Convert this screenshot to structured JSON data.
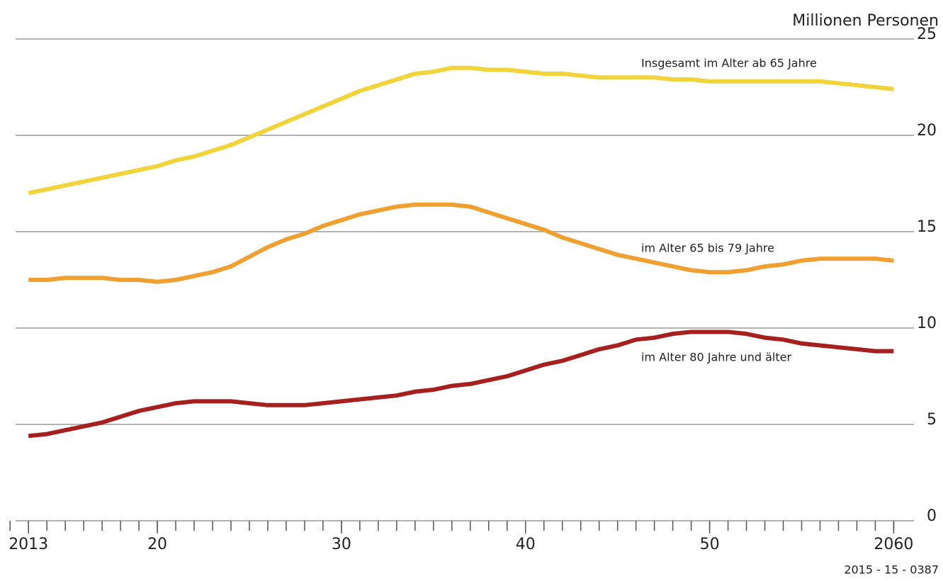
{
  "chart_data": {
    "type": "line",
    "y_axis_label": "Millionen Personen",
    "source": "2015 - 15 - 0387",
    "x": [
      2013,
      2014,
      2015,
      2016,
      2017,
      2018,
      2019,
      2020,
      2021,
      2022,
      2023,
      2024,
      2025,
      2026,
      2027,
      2028,
      2029,
      2030,
      2031,
      2032,
      2033,
      2034,
      2035,
      2036,
      2037,
      2038,
      2039,
      2040,
      2041,
      2042,
      2043,
      2044,
      2045,
      2046,
      2047,
      2048,
      2049,
      2050,
      2051,
      2052,
      2053,
      2054,
      2055,
      2056,
      2057,
      2058,
      2059,
      2060
    ],
    "series": [
      {
        "name": "Insgesamt im Alter ab 65 Jahre",
        "color": "#f0d43a",
        "values": [
          17.0,
          17.2,
          17.4,
          17.6,
          17.8,
          18.0,
          18.2,
          18.4,
          18.7,
          18.9,
          19.2,
          19.5,
          19.9,
          20.3,
          20.7,
          21.1,
          21.5,
          21.9,
          22.3,
          22.6,
          22.9,
          23.2,
          23.3,
          23.5,
          23.5,
          23.4,
          23.4,
          23.3,
          23.2,
          23.2,
          23.1,
          23.0,
          23.0,
          23.0,
          23.0,
          22.9,
          22.9,
          22.8,
          22.8,
          22.8,
          22.8,
          22.8,
          22.8,
          22.8,
          22.7,
          22.6,
          22.5,
          22.4
        ]
      },
      {
        "name": "im Alter 65 bis 79 Jahre",
        "color": "#f0a030",
        "values": [
          12.5,
          12.5,
          12.6,
          12.6,
          12.6,
          12.5,
          12.5,
          12.4,
          12.5,
          12.7,
          12.9,
          13.2,
          13.7,
          14.2,
          14.6,
          14.9,
          15.3,
          15.6,
          15.9,
          16.1,
          16.3,
          16.4,
          16.4,
          16.4,
          16.3,
          16.0,
          15.7,
          15.4,
          15.1,
          14.7,
          14.4,
          14.1,
          13.8,
          13.6,
          13.4,
          13.2,
          13.0,
          12.9,
          12.9,
          13.0,
          13.2,
          13.3,
          13.5,
          13.6,
          13.6,
          13.6,
          13.6,
          13.5
        ]
      },
      {
        "name": "im Alter 80 Jahre und älter",
        "color": "#a5201e",
        "values": [
          4.4,
          4.5,
          4.7,
          4.9,
          5.1,
          5.4,
          5.7,
          5.9,
          6.1,
          6.2,
          6.2,
          6.2,
          6.1,
          6.0,
          6.0,
          6.0,
          6.1,
          6.2,
          6.3,
          6.4,
          6.5,
          6.7,
          6.8,
          7.0,
          7.1,
          7.3,
          7.5,
          7.8,
          8.1,
          8.3,
          8.6,
          8.9,
          9.1,
          9.4,
          9.5,
          9.7,
          9.8,
          9.8,
          9.8,
          9.7,
          9.5,
          9.4,
          9.2,
          9.1,
          9.0,
          8.9,
          8.8,
          8.8
        ]
      }
    ],
    "xlim": [
      2012.3,
      2061.1
    ],
    "xticks": [
      2013,
      {
        "value": 2020,
        "label": "20"
      },
      {
        "value": 2030,
        "label": "30"
      },
      {
        "value": 2040,
        "label": "40"
      },
      {
        "value": 2050,
        "label": "50"
      },
      2060
    ],
    "xminorticks": [
      2012,
      2013,
      2014,
      2015,
      2016,
      2017,
      2018,
      2019,
      2020,
      2021,
      2022,
      2023,
      2024,
      2025,
      2026,
      2027,
      2028,
      2029,
      2030,
      2031,
      2032,
      2033,
      2034,
      2035,
      2036,
      2037,
      2038,
      2039,
      2040,
      2041,
      2042,
      2043,
      2044,
      2045,
      2046,
      2047,
      2048,
      2049,
      2050,
      2051,
      2052,
      2053,
      2054,
      2055,
      2056,
      2057,
      2058,
      2059,
      2060
    ],
    "ylim": [
      0,
      25
    ],
    "yticks": [
      0,
      5,
      10,
      15,
      20,
      25
    ],
    "grid": true
  }
}
